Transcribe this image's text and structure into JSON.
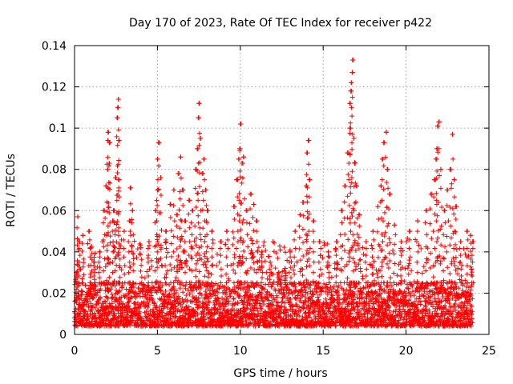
{
  "chart_data": {
    "type": "scatter",
    "title": "Day 170 of 2023, Rate Of TEC Index for receiver p422",
    "xlabel": "GPS time / hours",
    "ylabel": "ROTI / TECUs",
    "xlim": [
      0,
      25
    ],
    "ylim": [
      0,
      0.14
    ],
    "xticks": [
      0,
      5,
      10,
      15,
      20,
      25
    ],
    "xtick_labels": [
      "0",
      "5",
      "10",
      "15",
      "20",
      "25"
    ],
    "yticks": [
      0,
      0.02,
      0.04,
      0.06,
      0.08,
      0.1,
      0.12,
      0.14
    ],
    "ytick_labels": [
      "0",
      "0.02",
      "0.04",
      "0.06",
      "0.08",
      "0.1",
      "0.12",
      "0.14"
    ],
    "grid": true,
    "marker": "+",
    "series": [
      {
        "name": "ROTI",
        "color": "#ff0000",
        "points": [
          [
            0.1,
            0.03
          ],
          [
            0.2,
            0.057
          ],
          [
            0.3,
            0.045
          ],
          [
            0.5,
            0.048
          ],
          [
            0.9,
            0.05
          ],
          [
            1.0,
            0.042
          ],
          [
            1.2,
            0.035
          ],
          [
            1.5,
            0.04
          ],
          [
            1.8,
            0.06
          ],
          [
            1.9,
            0.072
          ],
          [
            2.0,
            0.08
          ],
          [
            2.0,
            0.094
          ],
          [
            2.05,
            0.098
          ],
          [
            2.1,
            0.083
          ],
          [
            2.1,
            0.093
          ],
          [
            2.3,
            0.055
          ],
          [
            2.4,
            0.06
          ],
          [
            2.5,
            0.076
          ],
          [
            2.6,
            0.105
          ],
          [
            2.6,
            0.11
          ],
          [
            2.65,
            0.114
          ],
          [
            2.7,
            0.094
          ],
          [
            2.7,
            0.075
          ],
          [
            3.0,
            0.05
          ],
          [
            3.3,
            0.055
          ],
          [
            3.4,
            0.071
          ],
          [
            3.5,
            0.06
          ],
          [
            4.0,
            0.042
          ],
          [
            4.5,
            0.045
          ],
          [
            4.9,
            0.06
          ],
          [
            5.0,
            0.07
          ],
          [
            5.0,
            0.085
          ],
          [
            5.1,
            0.093
          ],
          [
            5.2,
            0.076
          ],
          [
            5.5,
            0.05
          ],
          [
            5.8,
            0.063
          ],
          [
            6.0,
            0.07
          ],
          [
            6.2,
            0.058
          ],
          [
            6.3,
            0.078
          ],
          [
            6.4,
            0.086
          ],
          [
            6.5,
            0.07
          ],
          [
            6.7,
            0.055
          ],
          [
            6.9,
            0.065
          ],
          [
            7.1,
            0.06
          ],
          [
            7.3,
            0.08
          ],
          [
            7.4,
            0.09
          ],
          [
            7.5,
            0.105
          ],
          [
            7.5,
            0.112
          ],
          [
            7.6,
            0.095
          ],
          [
            7.7,
            0.078
          ],
          [
            7.8,
            0.085
          ],
          [
            7.9,
            0.07
          ],
          [
            8.0,
            0.06
          ],
          [
            8.3,
            0.05
          ],
          [
            8.8,
            0.045
          ],
          [
            9.2,
            0.05
          ],
          [
            9.6,
            0.062
          ],
          [
            9.8,
            0.075
          ],
          [
            9.9,
            0.085
          ],
          [
            10.0,
            0.09
          ],
          [
            10.0,
            0.102
          ],
          [
            10.1,
            0.083
          ],
          [
            10.2,
            0.086
          ],
          [
            10.4,
            0.06
          ],
          [
            10.6,
            0.068
          ],
          [
            10.8,
            0.063
          ],
          [
            11.0,
            0.055
          ],
          [
            11.3,
            0.04
          ],
          [
            11.8,
            0.035
          ],
          [
            12.3,
            0.03
          ],
          [
            12.7,
            0.032
          ],
          [
            13.0,
            0.04
          ],
          [
            13.3,
            0.05
          ],
          [
            13.6,
            0.058
          ],
          [
            13.8,
            0.064
          ],
          [
            14.0,
            0.072
          ],
          [
            14.05,
            0.088
          ],
          [
            14.1,
            0.094
          ],
          [
            14.2,
            0.075
          ],
          [
            14.4,
            0.055
          ],
          [
            14.8,
            0.045
          ],
          [
            15.3,
            0.04
          ],
          [
            15.8,
            0.045
          ],
          [
            16.1,
            0.06
          ],
          [
            16.3,
            0.072
          ],
          [
            16.5,
            0.088
          ],
          [
            16.6,
            0.1
          ],
          [
            16.6,
            0.112
          ],
          [
            16.65,
            0.118
          ],
          [
            16.7,
            0.122
          ],
          [
            16.75,
            0.127
          ],
          [
            16.8,
            0.133
          ],
          [
            16.85,
            0.095
          ],
          [
            16.9,
            0.083
          ],
          [
            17.0,
            0.072
          ],
          [
            17.2,
            0.058
          ],
          [
            17.6,
            0.045
          ],
          [
            18.0,
            0.05
          ],
          [
            18.3,
            0.062
          ],
          [
            18.5,
            0.072
          ],
          [
            18.6,
            0.085
          ],
          [
            18.7,
            0.093
          ],
          [
            18.8,
            0.098
          ],
          [
            18.9,
            0.08
          ],
          [
            19.0,
            0.068
          ],
          [
            19.3,
            0.053
          ],
          [
            19.7,
            0.045
          ],
          [
            20.2,
            0.05
          ],
          [
            20.7,
            0.055
          ],
          [
            21.2,
            0.06
          ],
          [
            21.5,
            0.068
          ],
          [
            21.7,
            0.075
          ],
          [
            21.8,
            0.085
          ],
          [
            21.85,
            0.09
          ],
          [
            21.9,
            0.101
          ],
          [
            22.0,
            0.103
          ],
          [
            22.1,
            0.08
          ],
          [
            22.3,
            0.06
          ],
          [
            22.5,
            0.07
          ],
          [
            22.7,
            0.08
          ],
          [
            22.8,
            0.097
          ],
          [
            22.9,
            0.075
          ],
          [
            23.0,
            0.062
          ],
          [
            23.3,
            0.045
          ],
          [
            23.7,
            0.05
          ],
          [
            23.9,
            0.048
          ],
          [
            24.0,
            0.045
          ]
        ],
        "dense_band": {
          "x_range": [
            0,
            24
          ],
          "y_floor": 0.004,
          "typical_range": [
            0.005,
            0.025
          ],
          "sample_step_hours": 0.02
        }
      }
    ]
  }
}
